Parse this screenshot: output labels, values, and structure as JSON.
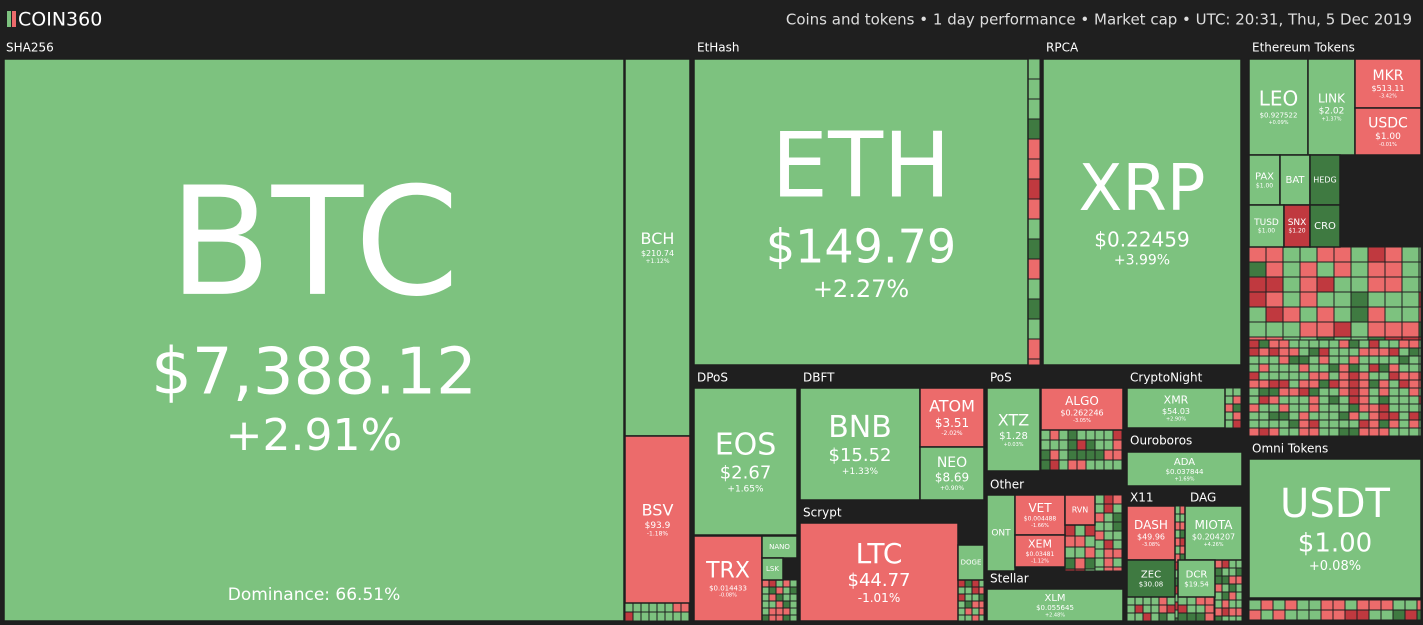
{
  "header": {
    "logo": "COIN360",
    "info": "Coins and tokens • 1 day performance • Market cap • UTC: 20:31, Thu, 5 Dec 2019"
  },
  "groups": [
    {
      "name": "SHA256",
      "tiles": [
        {
          "symbol": "BTC",
          "price": "$7,388.12",
          "change": "+2.91%",
          "extra": "Dominance: 66.51%"
        },
        {
          "symbol": "BCH",
          "price": "$210.74",
          "change": "+1.12%"
        },
        {
          "symbol": "BSV",
          "price": "$93.9",
          "change": "-1.18%"
        }
      ]
    },
    {
      "name": "EtHash",
      "tiles": [
        {
          "symbol": "ETH",
          "price": "$149.79",
          "change": "+2.27%"
        }
      ]
    },
    {
      "name": "RPCA",
      "tiles": [
        {
          "symbol": "XRP",
          "price": "$0.22459",
          "change": "+3.99%"
        }
      ]
    },
    {
      "name": "Ethereum Tokens",
      "tiles": [
        {
          "symbol": "LEO",
          "price": "$0.927522",
          "change": "+0.09%"
        },
        {
          "symbol": "LINK",
          "price": "$2.02",
          "change": "+1.37%"
        },
        {
          "symbol": "MKR",
          "price": "$513.11",
          "change": "-3.42%"
        },
        {
          "symbol": "USDC",
          "price": "$1.00",
          "change": "-0.01%"
        },
        {
          "symbol": "PAX",
          "price": "$1.00"
        },
        {
          "symbol": "BAT"
        },
        {
          "symbol": "HEDG"
        },
        {
          "symbol": "TUSD",
          "price": "$1.00"
        },
        {
          "symbol": "SNX",
          "price": "$1.20"
        },
        {
          "symbol": "CRO"
        }
      ]
    },
    {
      "name": "Omni Tokens",
      "tiles": [
        {
          "symbol": "USDT",
          "price": "$1.00",
          "change": "+0.08%"
        }
      ]
    },
    {
      "name": "DPoS",
      "tiles": [
        {
          "symbol": "EOS",
          "price": "$2.67",
          "change": "+1.65%"
        },
        {
          "symbol": "TRX",
          "price": "$0.014433",
          "change": "-0.08%"
        },
        {
          "symbol": "NANO"
        },
        {
          "symbol": "LSK"
        }
      ]
    },
    {
      "name": "DBFT",
      "tiles": [
        {
          "symbol": "BNB",
          "price": "$15.52",
          "change": "+1.33%"
        },
        {
          "symbol": "ATOM",
          "price": "$3.51",
          "change": "-2.02%"
        },
        {
          "symbol": "NEO",
          "price": "$8.69",
          "change": "+0.90%"
        }
      ]
    },
    {
      "name": "Scrypt",
      "tiles": [
        {
          "symbol": "LTC",
          "price": "$44.77",
          "change": "-1.01%"
        },
        {
          "symbol": "DOGE"
        }
      ]
    },
    {
      "name": "PoS",
      "tiles": [
        {
          "symbol": "XTZ",
          "price": "$1.28",
          "change": "+0.03%"
        },
        {
          "symbol": "ALGO",
          "price": "$0.262246",
          "change": "-3.05%"
        }
      ]
    },
    {
      "name": "Other",
      "tiles": [
        {
          "symbol": "ONT"
        },
        {
          "symbol": "VET",
          "price": "$0.004488",
          "change": "-1.66%"
        },
        {
          "symbol": "XEM",
          "price": "$0.03481",
          "change": "-1.12%"
        },
        {
          "symbol": "RVN"
        }
      ]
    },
    {
      "name": "Stellar",
      "tiles": [
        {
          "symbol": "XLM",
          "price": "$0.055645",
          "change": "+2.48%"
        }
      ]
    },
    {
      "name": "CryptoNight",
      "tiles": [
        {
          "symbol": "XMR",
          "price": "$54.03",
          "change": "+2.90%"
        }
      ]
    },
    {
      "name": "Ouroboros",
      "tiles": [
        {
          "symbol": "ADA",
          "price": "$0.037844",
          "change": "+1.69%"
        }
      ]
    },
    {
      "name": "X11",
      "tiles": [
        {
          "symbol": "DASH",
          "price": "$49.96",
          "change": "-3.08%"
        },
        {
          "symbol": "ZEC",
          "price": "$30.08"
        }
      ]
    },
    {
      "name": "DAG",
      "tiles": [
        {
          "symbol": "MIOTA",
          "price": "$0.204207",
          "change": "+4.26%"
        },
        {
          "symbol": "DCR",
          "price": "$19.54"
        }
      ]
    }
  ]
}
